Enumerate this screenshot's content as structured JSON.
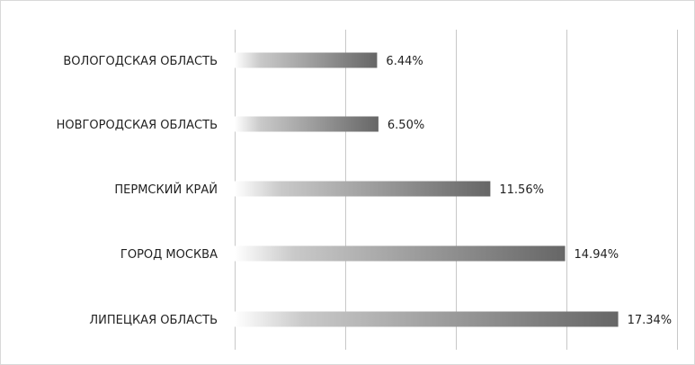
{
  "chart_data": {
    "type": "bar",
    "orientation": "horizontal",
    "categories": [
      "ВОЛОГОДСКАЯ ОБЛАСТЬ",
      "НОВГОРОДСКАЯ ОБЛАСТЬ",
      "ПЕРМСКИЙ КРАЙ",
      "ГОРОД МОСКВА",
      "ЛИПЕЦКАЯ ОБЛАСТЬ"
    ],
    "values": [
      6.44,
      6.5,
      11.56,
      14.94,
      17.34
    ],
    "value_labels": [
      "6.44%",
      "6.50%",
      "11.56%",
      "14.94%",
      "17.34%"
    ],
    "xlim": [
      0,
      20
    ],
    "grid": true,
    "legend": "none",
    "title": "",
    "xlabel": "",
    "ylabel": "",
    "bar_color_start": "#ffffff",
    "bar_color_end": "#666666",
    "grid_color": "#c8c8c8"
  }
}
